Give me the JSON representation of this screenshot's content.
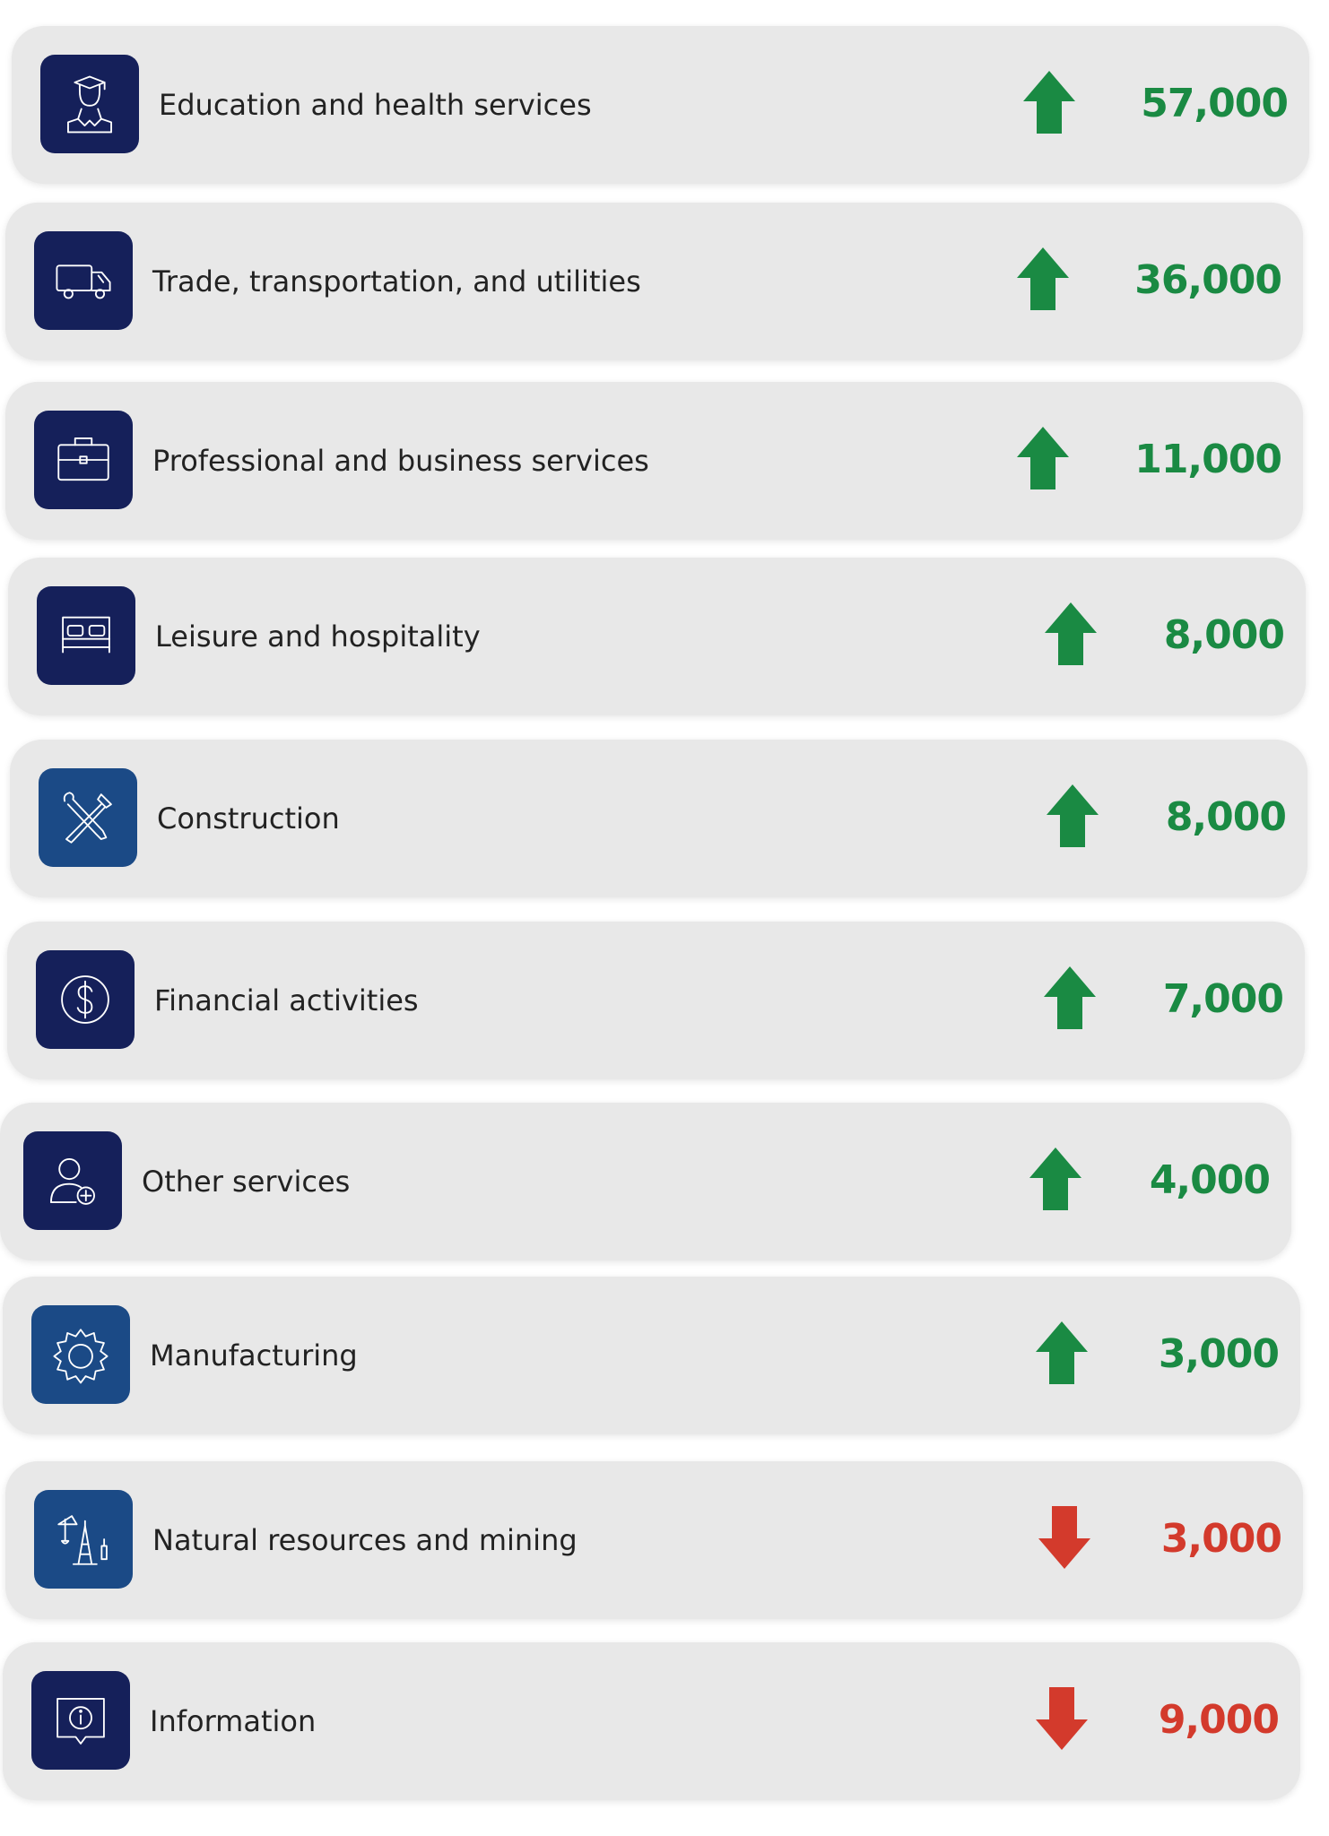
{
  "colors": {
    "card_bg": "#e8e8e8",
    "icon_navy": "#15205a",
    "icon_blue": "#1b4a86",
    "up": "#1a8a43",
    "down": "#d33a2c"
  },
  "rows": [
    {
      "label": "Education and health services",
      "icon": "graduate-icon",
      "direction": "up",
      "value": "57,000"
    },
    {
      "label": "Trade, transportation, and utilities",
      "icon": "truck-icon",
      "direction": "up",
      "value": "36,000"
    },
    {
      "label": "Professional and business services",
      "icon": "briefcase-icon",
      "direction": "up",
      "value": "11,000"
    },
    {
      "label": "Leisure and hospitality",
      "icon": "bed-icon",
      "direction": "up",
      "value": "8,000"
    },
    {
      "label": "Construction",
      "icon": "tools-icon",
      "direction": "up",
      "value": "8,000"
    },
    {
      "label": "Financial activities",
      "icon": "dollar-icon",
      "direction": "up",
      "value": "7,000"
    },
    {
      "label": "Other services",
      "icon": "person-plus-icon",
      "direction": "up",
      "value": "4,000"
    },
    {
      "label": "Manufacturing",
      "icon": "gear-icon",
      "direction": "up",
      "value": "3,000"
    },
    {
      "label": "Natural resources and mining",
      "icon": "oil-rig-icon",
      "direction": "down",
      "value": "3,000"
    },
    {
      "label": "Information",
      "icon": "info-icon",
      "direction": "down",
      "value": "9,000"
    }
  ]
}
